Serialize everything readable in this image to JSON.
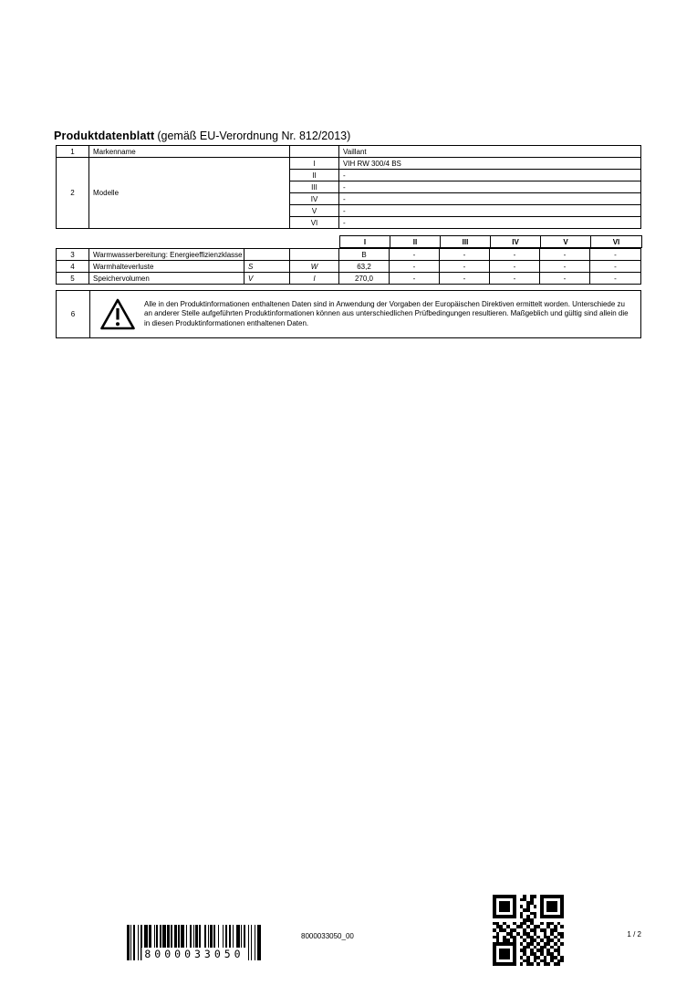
{
  "title": {
    "main": "Produktdatenblatt",
    "suffix": "(gemäß EU-Verordnung Nr. 812/2013)"
  },
  "table1": {
    "row1": {
      "num": "1",
      "label": "Markenname",
      "value": "Vaillant"
    },
    "row2": {
      "num": "2",
      "label": "Modelle"
    },
    "models": [
      {
        "numeral": "I",
        "value": "VIH RW 300/4 BS"
      },
      {
        "numeral": "II",
        "value": "-"
      },
      {
        "numeral": "III",
        "value": "-"
      },
      {
        "numeral": "IV",
        "value": "-"
      },
      {
        "numeral": "V",
        "value": "-"
      },
      {
        "numeral": "VI",
        "value": "-"
      }
    ]
  },
  "table2": {
    "headers": [
      "I",
      "II",
      "III",
      "IV",
      "V",
      "VI"
    ],
    "rows": [
      {
        "num": "3",
        "label": "Warmwasserbereitung: Energieeffizienzklasse",
        "symbol": "",
        "unit": "",
        "values": [
          "B",
          "-",
          "-",
          "-",
          "-",
          "-"
        ]
      },
      {
        "num": "4",
        "label": "Warmhalteverluste",
        "symbol": "S",
        "unit": "W",
        "values": [
          "63,2",
          "-",
          "-",
          "-",
          "-",
          "-"
        ]
      },
      {
        "num": "5",
        "label": "Speichervolumen",
        "symbol": "V",
        "unit": "l",
        "values": [
          "270,0",
          "-",
          "-",
          "-",
          "-",
          "-"
        ]
      }
    ]
  },
  "note": {
    "num": "6",
    "text": "Alle in den Produktinformationen enthaltenen Daten sind in Anwendung der Vorgaben der Europäischen Direktiven ermittelt worden. Unterschiede zu an anderer Stelle aufgeführten Produktinformationen können aus unterschiedlichen Prüfbedingungen resultieren. Maßgeblich und gültig sind allein die in diesen Produktinformationen enthaltenen Daten."
  },
  "footer": {
    "barcode": {
      "digits": "8000033050",
      "pattern": "2111221121312211121131211221113112211121132111211213112121123111221112113"
    },
    "doc_number": "8000033050_00",
    "page": "1 / 2",
    "qr_matrix": [
      "111111100101101111111",
      "100000101101001000001",
      "101110100011001011101",
      "101110101010101011101",
      "101110100110001011101",
      "100000101001101000001",
      "111111101010101111111",
      "000000000111000000000",
      "110100101101001011010",
      "011010011010110010101",
      "101101100101101101100",
      "010011010110100101011",
      "110101101011010110101",
      "010110100101101011010",
      "111111101011010110101",
      "100000100110101101010",
      "101110101101011010110",
      "101110100101101011010",
      "101110101010110101101",
      "100000100110101101011",
      "111111101011010110110"
    ]
  },
  "colors": {
    "ink": "#000000",
    "paper": "#ffffff"
  }
}
